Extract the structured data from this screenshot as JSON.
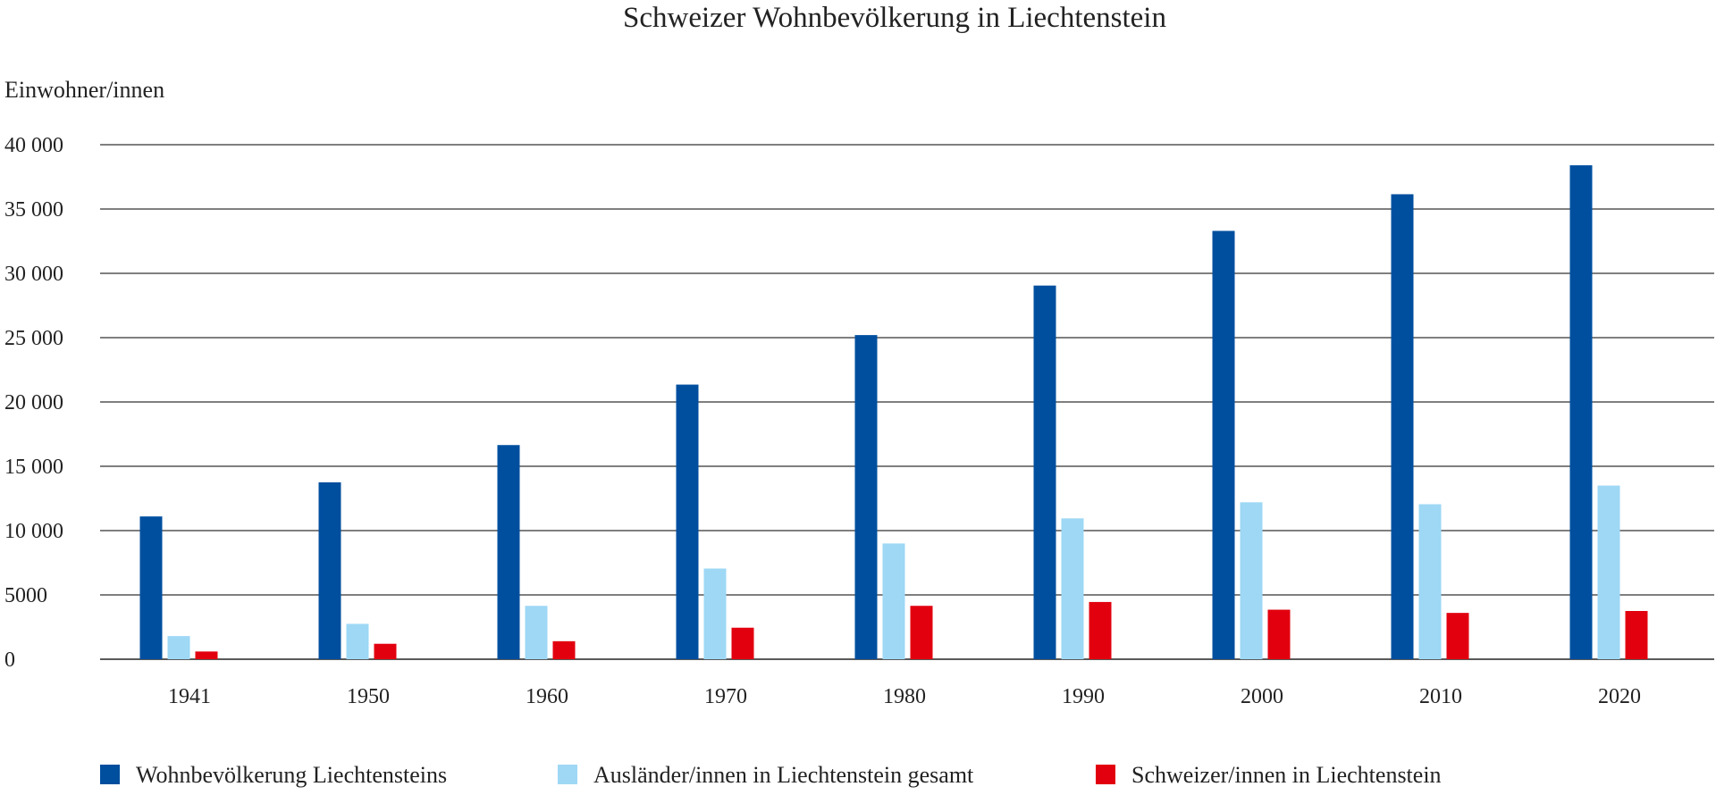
{
  "chart_data": {
    "type": "bar",
    "title": "Schweizer Wohnbevölkerung in Liechtenstein",
    "ylabel": "Einwohner/innen",
    "xlabel": "",
    "ylim": [
      0,
      40000
    ],
    "yticks": [
      0,
      5000,
      10000,
      15000,
      20000,
      25000,
      30000,
      35000,
      40000
    ],
    "ytick_labels": [
      "0",
      "5000",
      "10 000",
      "15 000",
      "20 000",
      "25 000",
      "30 000",
      "35 000",
      "40 000"
    ],
    "categories": [
      "1941",
      "1950",
      "1960",
      "1970",
      "1980",
      "1990",
      "2000",
      "2010",
      "2020"
    ],
    "grid": true,
    "legend_position": "bottom",
    "series": [
      {
        "name": "Wohnbevölkerung Liechtensteins",
        "color": "#004f9f",
        "values": [
          11100,
          13750,
          16650,
          21350,
          25200,
          29050,
          33300,
          36150,
          38400
        ]
      },
      {
        "name": "Ausländer/innen in Liechtenstein gesamt",
        "color": "#9ed8f5",
        "values": [
          1800,
          2750,
          4150,
          7050,
          9000,
          10950,
          12200,
          12050,
          13500
        ]
      },
      {
        "name": "Schweizer/innen in Liechtenstein",
        "color": "#e2000f",
        "values": [
          600,
          1200,
          1400,
          2450,
          4150,
          4450,
          3850,
          3600,
          3750
        ]
      }
    ]
  }
}
